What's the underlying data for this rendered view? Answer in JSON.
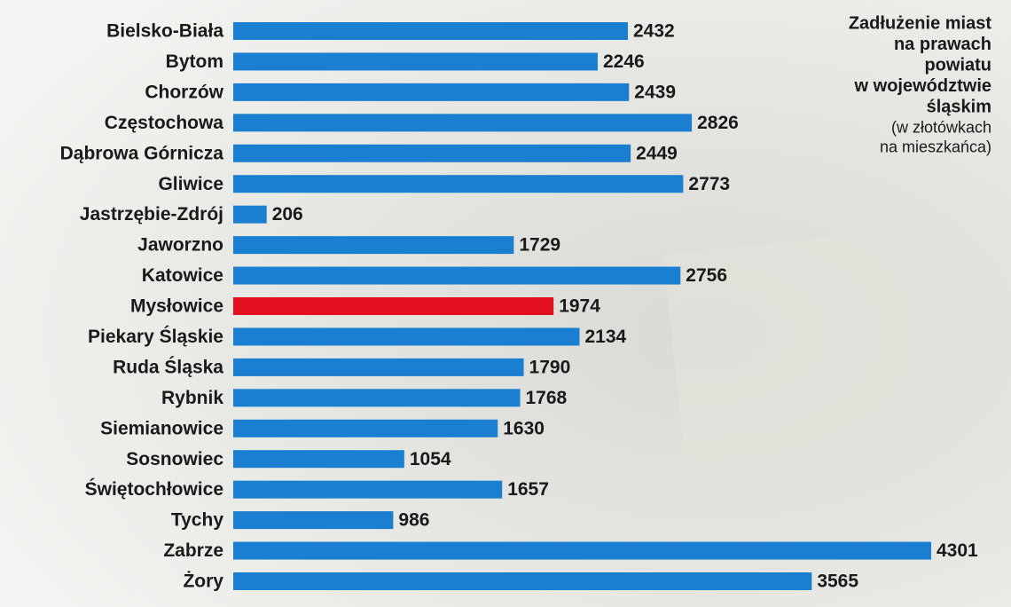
{
  "chart_data": {
    "type": "bar",
    "orientation": "horizontal",
    "title": [
      "Zadłużenie miast",
      "na prawach",
      "powiatu",
      "w województwie",
      "śląskim"
    ],
    "subtitle": [
      "(w złotówkach",
      "na mieszkańca)"
    ],
    "categories": [
      "Bielsko-Biała",
      "Bytom",
      "Chorzów",
      "Częstochowa",
      "Dąbrowa Górnicza",
      "Gliwice",
      "Jastrzębie-Zdrój",
      "Jaworzno",
      "Katowice",
      "Mysłowice",
      "Piekary Śląskie",
      "Ruda Śląska",
      "Rybnik",
      "Siemianowice",
      "Sosnowiec",
      "Świętochłowice",
      "Tychy",
      "Zabrze",
      "Żory"
    ],
    "values": [
      2432,
      2246,
      2439,
      2826,
      2449,
      2773,
      206,
      1729,
      2756,
      1974,
      2134,
      1790,
      1768,
      1630,
      1054,
      1657,
      986,
      4301,
      3565
    ],
    "colors": [
      "#1a7fd0",
      "#1a7fd0",
      "#1a7fd0",
      "#1a7fd0",
      "#1a7fd0",
      "#1a7fd0",
      "#1a7fd0",
      "#1a7fd0",
      "#1a7fd0",
      "#e3101f",
      "#1a7fd0",
      "#1a7fd0",
      "#1a7fd0",
      "#1a7fd0",
      "#1a7fd0",
      "#1a7fd0",
      "#1a7fd0",
      "#1a7fd0",
      "#1a7fd0"
    ]
  }
}
